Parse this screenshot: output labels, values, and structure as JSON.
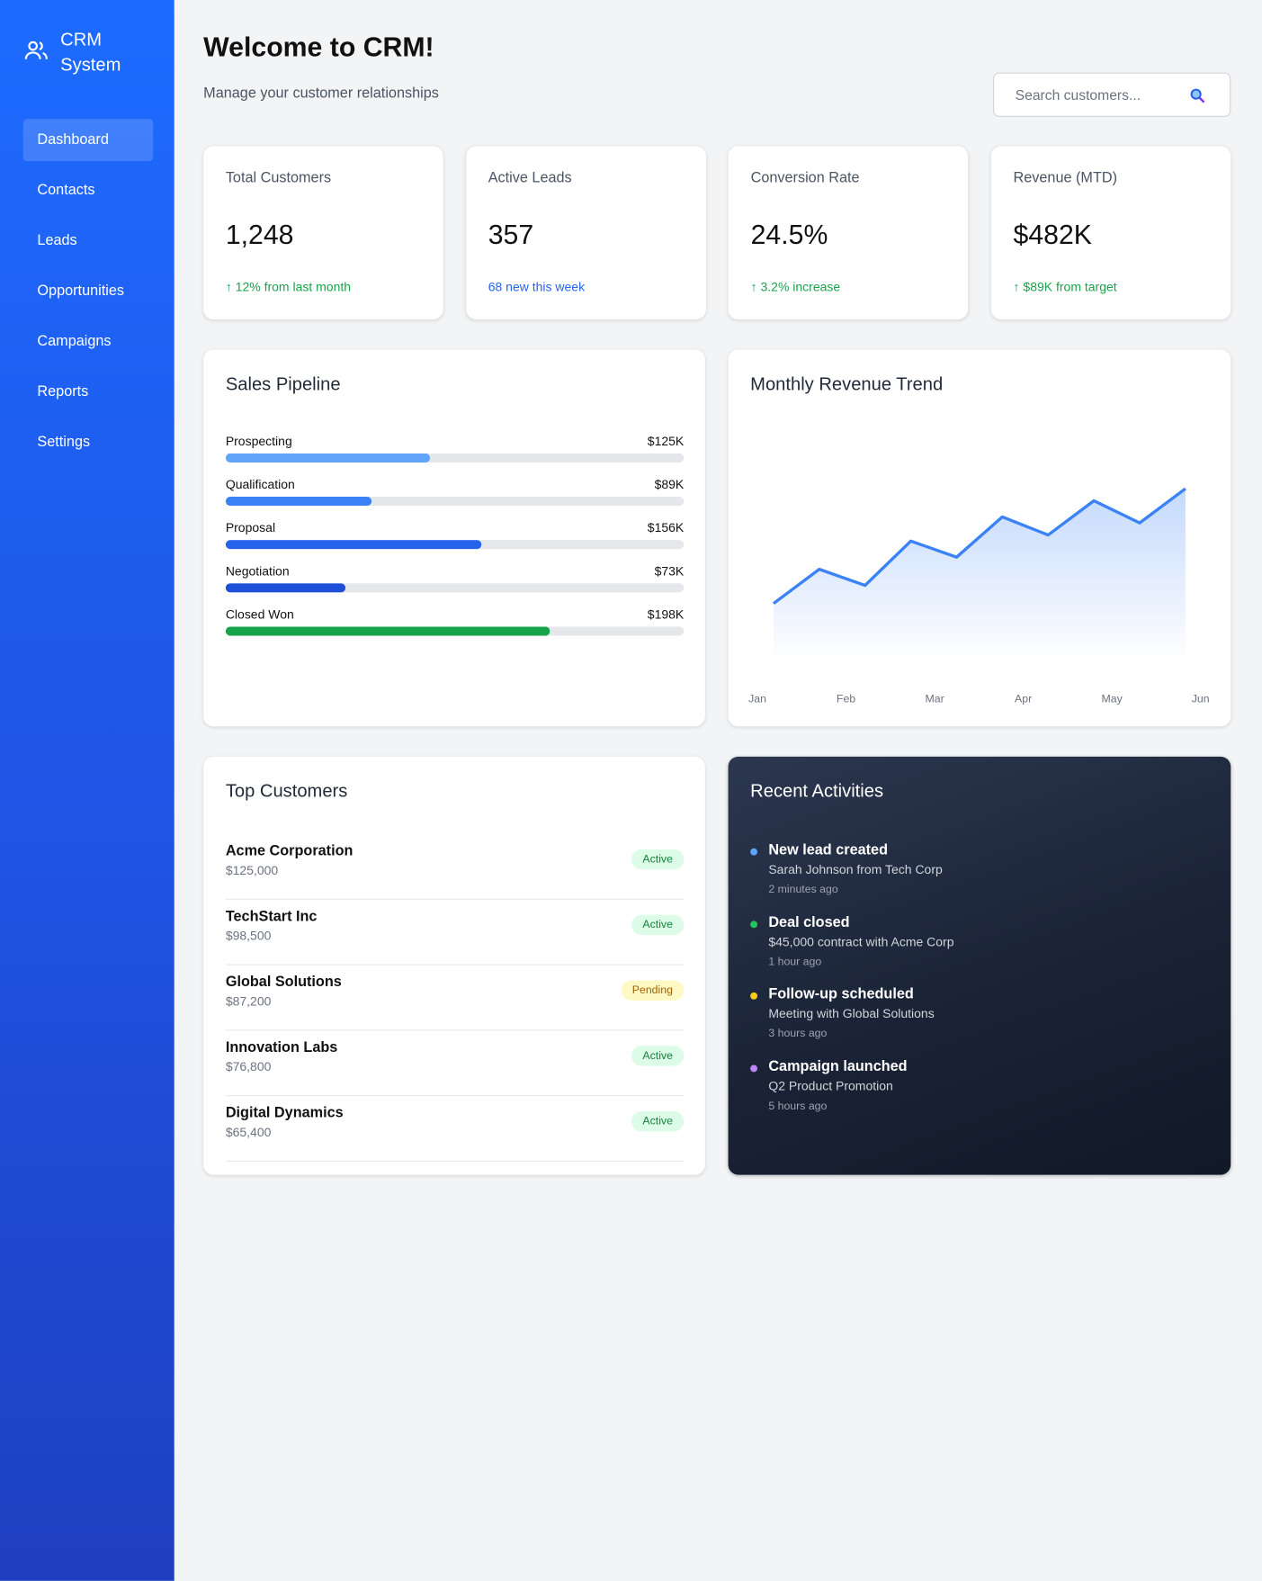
{
  "sidebar": {
    "brand": "CRM System",
    "nav": [
      "Dashboard",
      "Contacts",
      "Leads",
      "Opportunities",
      "Campaigns",
      "Reports",
      "Settings"
    ],
    "active": "Dashboard"
  },
  "header": {
    "title": "Welcome to CRM!",
    "subtitle": "Manage your customer relationships",
    "search_placeholder": "Search customers..."
  },
  "stats": [
    {
      "label": "Total Customers",
      "value": "1,248",
      "note": "↑ 12% from last month",
      "note_color": "#16a34a"
    },
    {
      "label": "Active Leads",
      "value": "357",
      "note": "68 new this week",
      "note_color": "#2563eb"
    },
    {
      "label": "Conversion Rate",
      "value": "24.5%",
      "note": "↑ 3.2% increase",
      "note_color": "#16a34a"
    },
    {
      "label": "Revenue (MTD)",
      "value": "$482K",
      "note": "↑ $89K from target",
      "note_color": "#16a34a"
    }
  ],
  "pipeline": {
    "title": "Sales Pipeline",
    "xlim": [
      0,
      280
    ],
    "stages": [
      {
        "name": "Prospecting",
        "value": 125,
        "value_label": "$125K",
        "color": "#60a5fa"
      },
      {
        "name": "Qualification",
        "value": 89,
        "value_label": "$89K",
        "color": "#3b82f6"
      },
      {
        "name": "Proposal",
        "value": 156,
        "value_label": "$156K",
        "color": "#2563eb"
      },
      {
        "name": "Negotiation",
        "value": 73,
        "value_label": "$73K",
        "color": "#1d4ed8"
      },
      {
        "name": "Closed Won",
        "value": 198,
        "value_label": "$198K",
        "color": "#16a34a"
      }
    ]
  },
  "revenue_chart": {
    "type": "line",
    "title": "Monthly Revenue Trend",
    "x_labels": [
      "Jan",
      "Feb",
      "Mar",
      "Apr",
      "May",
      "Jun"
    ],
    "values": [
      28,
      45,
      37,
      59,
      51,
      71,
      62,
      79,
      68,
      85
    ],
    "ylim": [
      0,
      100
    ],
    "color": "#3b82f6"
  },
  "top_customers": {
    "title": "Top Customers",
    "rows": [
      {
        "name": "Acme Corporation",
        "amount": "$125,000",
        "status": "Active",
        "badge_bg": "#dcfce7",
        "badge_fg": "#15803d"
      },
      {
        "name": "TechStart Inc",
        "amount": "$98,500",
        "status": "Active",
        "badge_bg": "#dcfce7",
        "badge_fg": "#15803d"
      },
      {
        "name": "Global Solutions",
        "amount": "$87,200",
        "status": "Pending",
        "badge_bg": "#fef9c3",
        "badge_fg": "#a16207"
      },
      {
        "name": "Innovation Labs",
        "amount": "$76,800",
        "status": "Active",
        "badge_bg": "#dcfce7",
        "badge_fg": "#15803d"
      },
      {
        "name": "Digital Dynamics",
        "amount": "$65,400",
        "status": "Active",
        "badge_bg": "#dcfce7",
        "badge_fg": "#15803d"
      }
    ]
  },
  "activities": {
    "title": "Recent Activities",
    "items": [
      {
        "title": "New lead created",
        "detail": "Sarah Johnson from Tech Corp",
        "time": "2 minutes ago",
        "color": "#60a5fa"
      },
      {
        "title": "Deal closed",
        "detail": "$45,000 contract with Acme Corp",
        "time": "1 hour ago",
        "color": "#22c55e"
      },
      {
        "title": "Follow-up scheduled",
        "detail": "Meeting with Global Solutions",
        "time": "3 hours ago",
        "color": "#facc15"
      },
      {
        "title": "Campaign launched",
        "detail": "Q2 Product Promotion",
        "time": "5 hours ago",
        "color": "#c084fc"
      }
    ]
  }
}
